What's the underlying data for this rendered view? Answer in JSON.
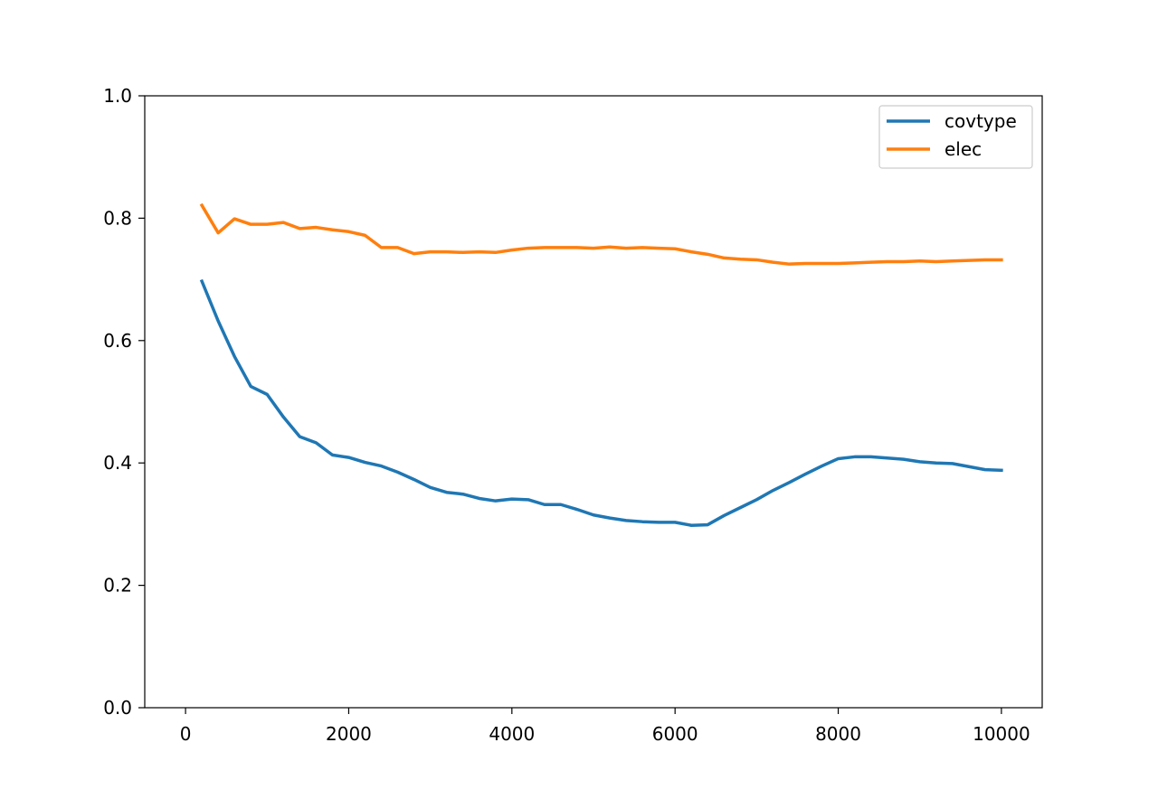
{
  "chart_data": {
    "type": "line",
    "title": "",
    "xlabel": "",
    "ylabel": "",
    "xlim": [
      -500,
      10500
    ],
    "ylim": [
      0.0,
      1.0
    ],
    "xticks": [
      0,
      2000,
      4000,
      6000,
      8000,
      10000
    ],
    "xtick_labels": [
      "0",
      "2000",
      "4000",
      "6000",
      "8000",
      "10000"
    ],
    "yticks": [
      0.0,
      0.2,
      0.4,
      0.6,
      0.8,
      1.0
    ],
    "ytick_labels": [
      "0.0",
      "0.2",
      "0.4",
      "0.6",
      "0.8",
      "1.0"
    ],
    "grid": false,
    "legend_position": "top-right",
    "x": [
      200,
      400,
      600,
      800,
      1000,
      1200,
      1400,
      1600,
      1800,
      2000,
      2200,
      2400,
      2600,
      2800,
      3000,
      3200,
      3400,
      3600,
      3800,
      4000,
      4200,
      4400,
      4600,
      4800,
      5000,
      5200,
      5400,
      5600,
      5800,
      6000,
      6200,
      6400,
      6600,
      6800,
      7000,
      7200,
      7400,
      7600,
      7800,
      8000,
      8200,
      8400,
      8600,
      8800,
      9000,
      9200,
      9400,
      9600,
      9800,
      10000
    ],
    "series": [
      {
        "name": "covtype",
        "color": "#1f77b4",
        "values": [
          0.697,
          0.632,
          0.574,
          0.525,
          0.512,
          0.475,
          0.443,
          0.433,
          0.413,
          0.409,
          0.401,
          0.395,
          0.385,
          0.373,
          0.36,
          0.352,
          0.349,
          0.342,
          0.338,
          0.341,
          0.34,
          0.332,
          0.332,
          0.324,
          0.315,
          0.31,
          0.306,
          0.304,
          0.303,
          0.303,
          0.298,
          0.299,
          0.314,
          0.327,
          0.34,
          0.355,
          0.368,
          0.382,
          0.395,
          0.407,
          0.41,
          0.41,
          0.408,
          0.406,
          0.402,
          0.4,
          0.399,
          0.394,
          0.389,
          0.388
        ]
      },
      {
        "name": "elec",
        "color": "#ff7f0e",
        "values": [
          0.821,
          0.776,
          0.799,
          0.79,
          0.79,
          0.793,
          0.783,
          0.785,
          0.781,
          0.778,
          0.772,
          0.752,
          0.752,
          0.742,
          0.745,
          0.745,
          0.744,
          0.745,
          0.744,
          0.748,
          0.751,
          0.752,
          0.752,
          0.752,
          0.751,
          0.753,
          0.751,
          0.752,
          0.751,
          0.75,
          0.745,
          0.741,
          0.735,
          0.733,
          0.732,
          0.728,
          0.725,
          0.726,
          0.726,
          0.726,
          0.727,
          0.728,
          0.729,
          0.729,
          0.73,
          0.729,
          0.73,
          0.731,
          0.732,
          0.732
        ]
      }
    ]
  }
}
